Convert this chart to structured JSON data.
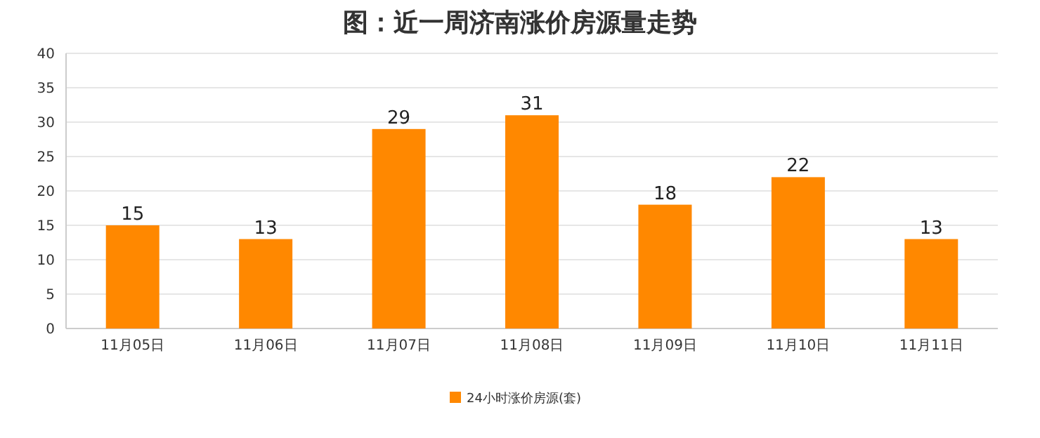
{
  "chart_data": {
    "type": "bar",
    "title": "图：近一周济南涨价房源量走势",
    "categories": [
      "11月05日",
      "11月06日",
      "11月07日",
      "11月08日",
      "11月09日",
      "11月10日",
      "11月11日"
    ],
    "series": [
      {
        "name": "24小时涨价房源(套)",
        "color": "#ff8800",
        "values": [
          15,
          13,
          29,
          31,
          18,
          22,
          13
        ]
      }
    ],
    "ylim": [
      0,
      40
    ],
    "yticks": [
      0,
      5,
      10,
      15,
      20,
      25,
      30,
      35,
      40
    ],
    "grid": "y",
    "legend": "bottom",
    "data_labels": true
  }
}
